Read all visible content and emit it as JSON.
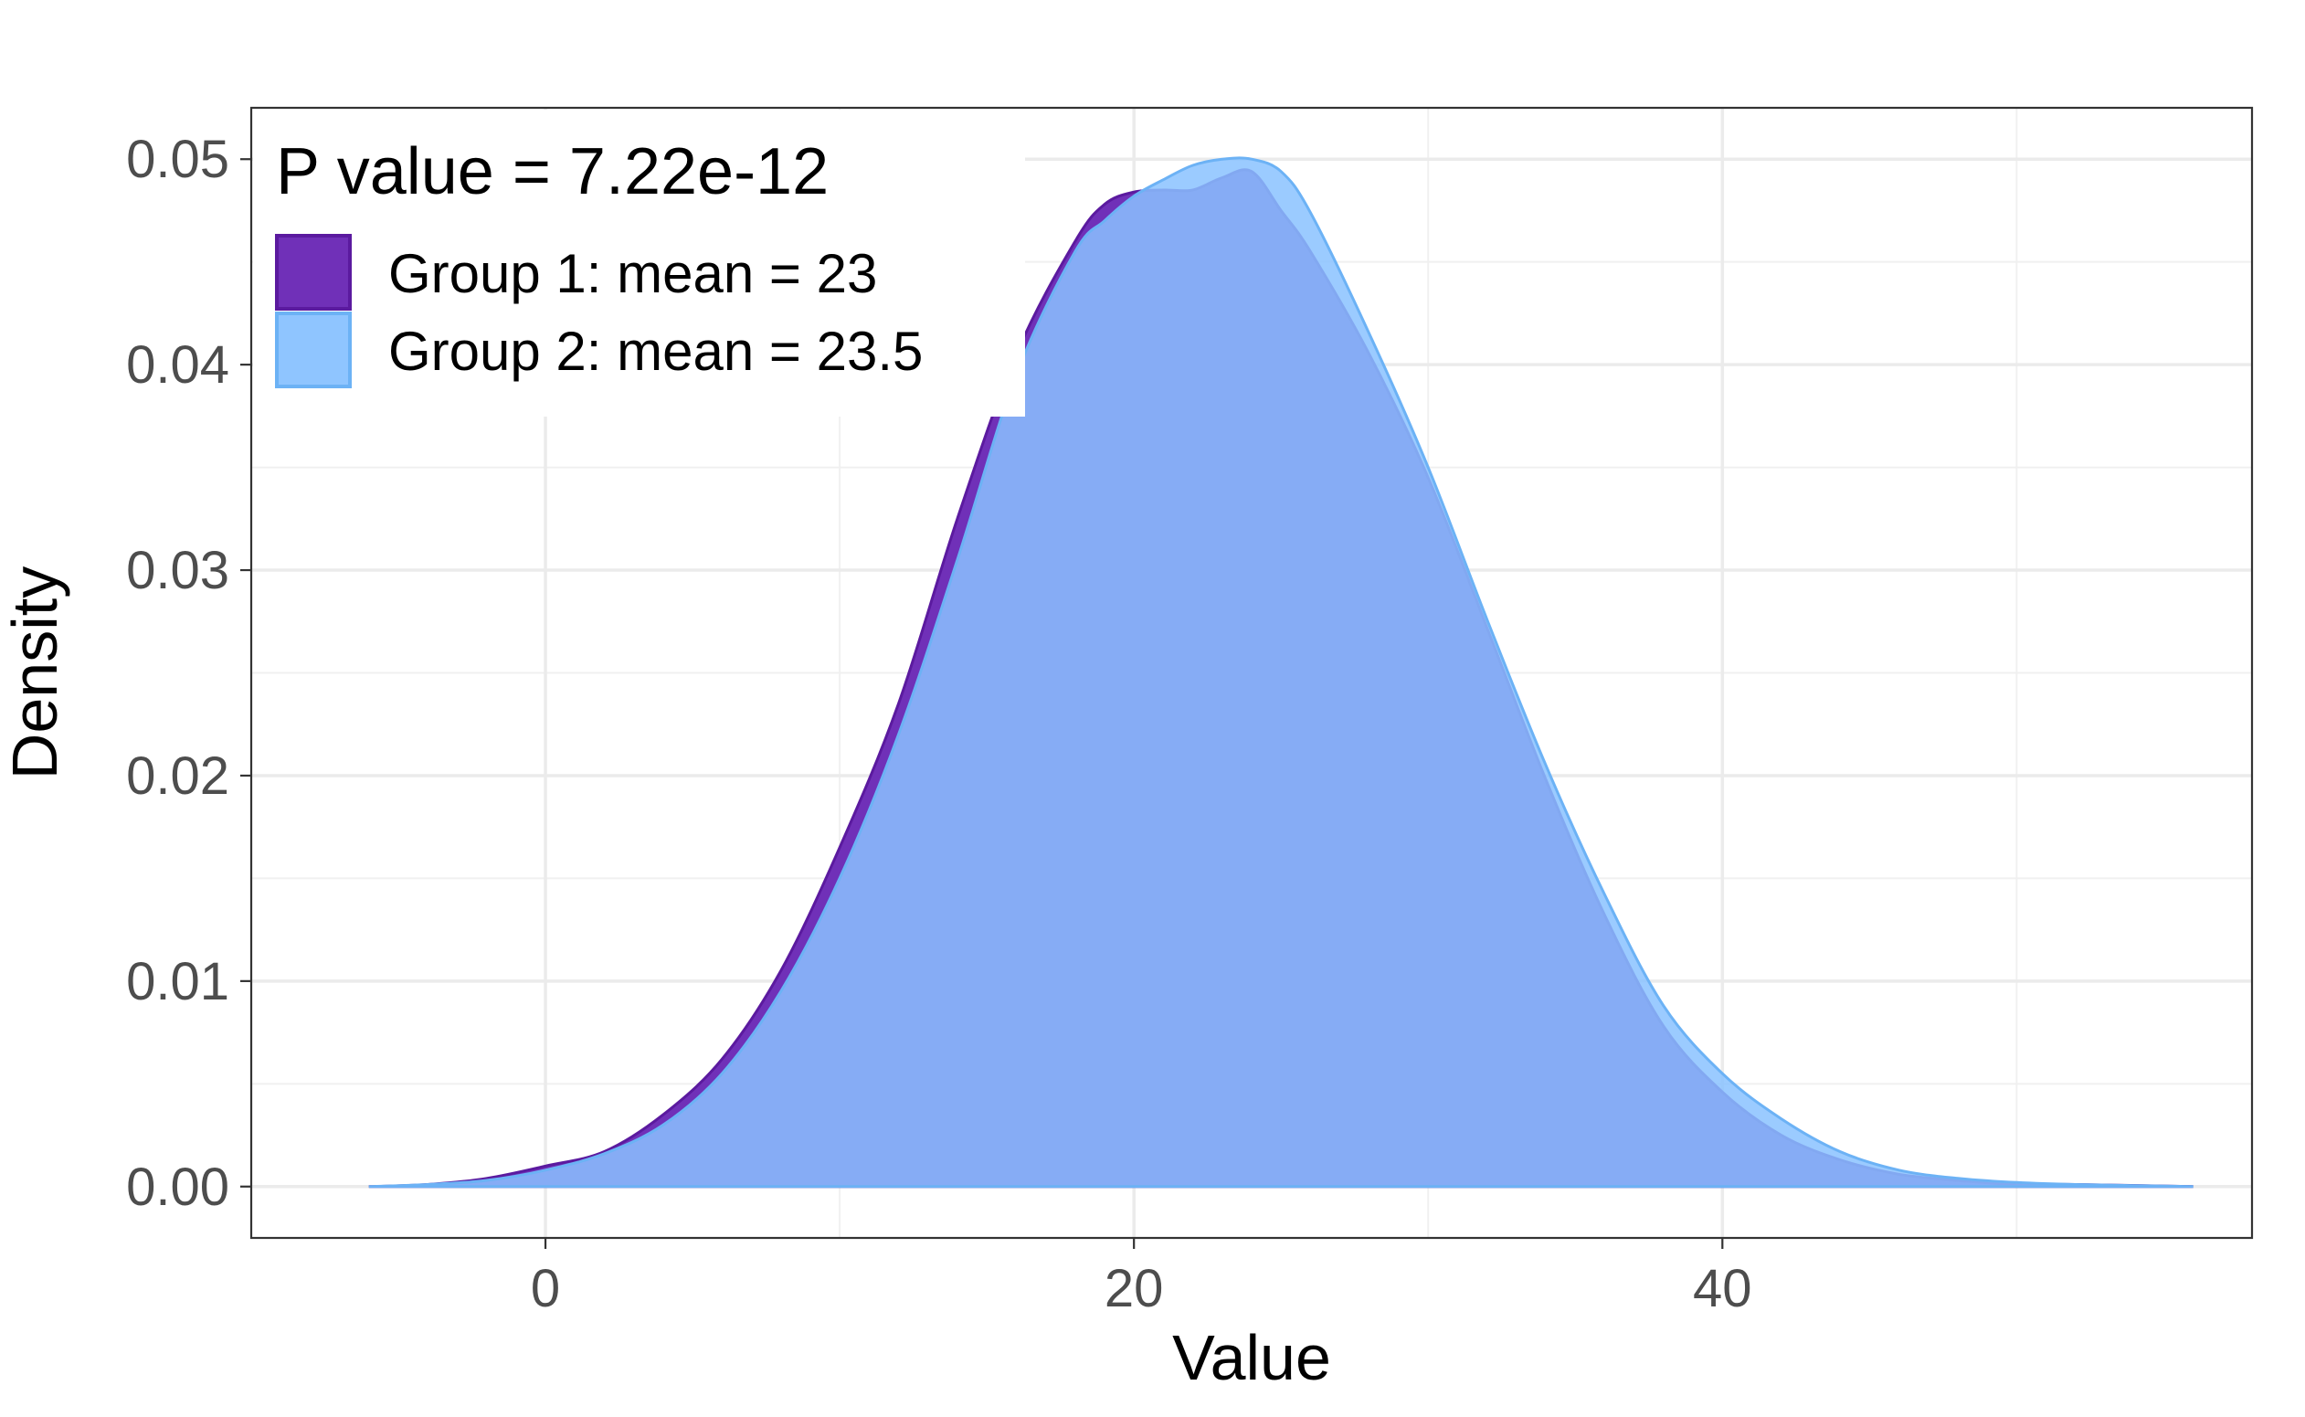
{
  "chart_data": {
    "type": "area",
    "xlabel": "Value",
    "ylabel": "Density",
    "xlim": [
      -10,
      58
    ],
    "ylim": [
      -0.0025,
      0.0525
    ],
    "x_ticks": [
      0,
      20,
      40
    ],
    "x_tick_labels": [
      "0",
      "20",
      "40"
    ],
    "y_ticks": [
      0,
      0.01,
      0.02,
      0.03,
      0.04,
      0.05
    ],
    "y_tick_labels": [
      "0.00",
      "0.01",
      "0.02",
      "0.03",
      "0.04",
      "0.05"
    ],
    "grid": true,
    "legend": {
      "title": "P value = 7.22e-12",
      "position": "top-left"
    },
    "series": [
      {
        "name": "Group 1: mean = 23",
        "color": "#5b1a9f",
        "fill": "#7030b8",
        "x": [
          -6,
          -4,
          -2,
          0,
          2,
          4,
          6,
          8,
          10,
          12,
          14,
          16,
          18,
          19,
          20,
          21,
          22,
          23,
          24,
          25,
          26,
          28,
          30,
          32,
          34,
          36,
          38,
          40,
          42,
          44,
          46,
          48,
          50,
          52,
          56
        ],
        "y": [
          0.0,
          0.0001,
          0.0004,
          0.001,
          0.0017,
          0.0035,
          0.0062,
          0.0105,
          0.0165,
          0.0235,
          0.0325,
          0.0405,
          0.046,
          0.0478,
          0.0484,
          0.0485,
          0.0485,
          0.0491,
          0.0494,
          0.0475,
          0.0455,
          0.0405,
          0.0345,
          0.0272,
          0.0198,
          0.0132,
          0.0078,
          0.0046,
          0.0025,
          0.0013,
          0.0006,
          0.0003,
          0.0001,
          0.0001,
          0.0
        ]
      },
      {
        "name": "Group 2: mean = 23.5",
        "color": "#6cb2f5",
        "fill": "#89c2ff",
        "x": [
          -6,
          -4,
          -2,
          0,
          2,
          4,
          6,
          8,
          10,
          12,
          14,
          16,
          18,
          19,
          20,
          21,
          22,
          23,
          24,
          25,
          26,
          28,
          30,
          32,
          34,
          36,
          38,
          40,
          42,
          44,
          46,
          48,
          50,
          52,
          56
        ],
        "y": [
          0.0,
          0.0001,
          0.0003,
          0.0008,
          0.0016,
          0.003,
          0.0055,
          0.0095,
          0.015,
          0.022,
          0.0305,
          0.0395,
          0.0455,
          0.047,
          0.0482,
          0.049,
          0.0497,
          0.05,
          0.05,
          0.0494,
          0.0474,
          0.0415,
          0.035,
          0.0276,
          0.0205,
          0.0142,
          0.0088,
          0.0055,
          0.0033,
          0.0017,
          0.0008,
          0.0004,
          0.0002,
          0.0001,
          0.0
        ]
      }
    ]
  }
}
